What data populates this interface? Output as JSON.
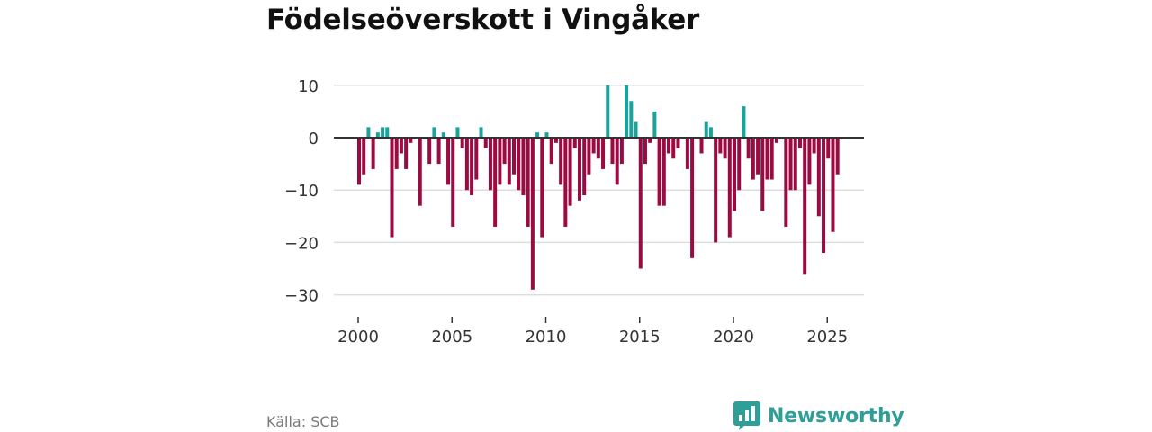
{
  "title": "Födelseöverskott i Vingåker",
  "source": "Källa: SCB",
  "brand": {
    "name": "Newsworthy",
    "icon": "bar-chart-speech-icon"
  },
  "colors": {
    "positive": "#1aa39a",
    "negative": "#9b0a40",
    "grid": "#dddddd",
    "zero_line": "#333333",
    "brand": "#2e9e97"
  },
  "chart_data": {
    "type": "bar",
    "title": "Födelseöverskott i Vingåker",
    "xlabel": "",
    "ylabel": "",
    "ylim": [
      -33,
      12
    ],
    "y_ticks": [
      10,
      0,
      -10,
      -20,
      -30
    ],
    "y_tick_labels": [
      "10",
      "0",
      "−10",
      "−20",
      "−30"
    ],
    "x_ticks": [
      2000,
      2005,
      2010,
      2015,
      2020,
      2025
    ],
    "x_tick_labels": [
      "2000",
      "2005",
      "2010",
      "2015",
      "2020",
      "2025"
    ],
    "x_start": 2000,
    "period": "quarter",
    "grid": true,
    "values": [
      -9,
      -7,
      2,
      -6,
      1,
      2,
      2,
      -19,
      -6,
      -3,
      -6,
      -1,
      0,
      -13,
      0,
      -5,
      2,
      -5,
      1,
      -9,
      -17,
      2,
      -2,
      -10,
      -11,
      -8,
      2,
      -2,
      -10,
      -17,
      -9,
      -5,
      -9,
      -7,
      -10,
      -11,
      -17,
      -29,
      1,
      -19,
      1,
      -5,
      -1,
      -9,
      -17,
      -13,
      -2,
      -12,
      -11,
      -7,
      -3,
      -4,
      -6,
      10,
      -5,
      -9,
      -5,
      10,
      7,
      3,
      -25,
      -5,
      -1,
      5,
      -13,
      -13,
      -3,
      -4,
      -2,
      0,
      -6,
      -23,
      0,
      -3,
      3,
      2,
      -20,
      -3,
      -4,
      -19,
      -14,
      -10,
      6,
      -4,
      -8,
      -7,
      -14,
      -8,
      -8,
      -1,
      0,
      -17,
      -10,
      -10,
      -2,
      -26,
      -9,
      -3,
      -15,
      -22,
      -4,
      -18,
      -7
    ]
  }
}
